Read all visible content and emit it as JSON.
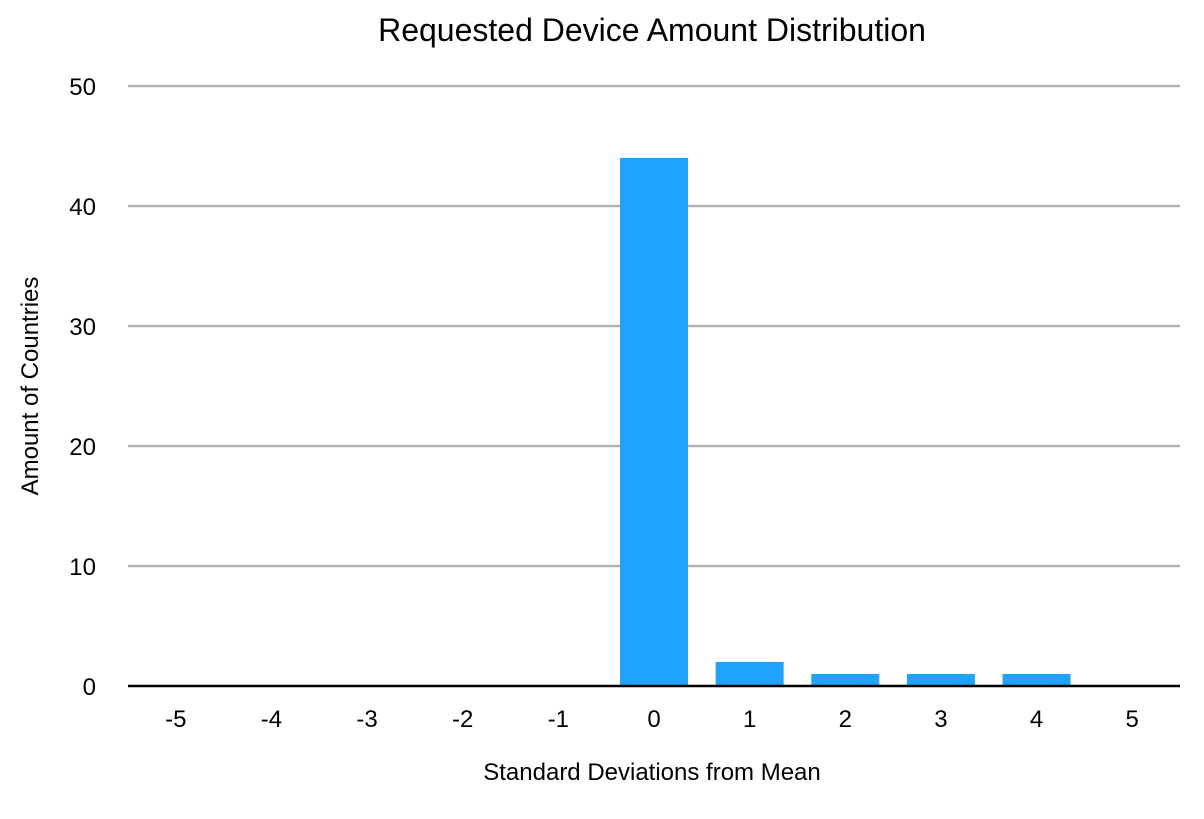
{
  "chart_data": {
    "type": "bar",
    "title": "Requested Device Amount Distribution",
    "xlabel": "Standard Deviations from Mean",
    "ylabel": "Amount of Countries",
    "categories": [
      "-5",
      "-4",
      "-3",
      "-2",
      "-1",
      "0",
      "1",
      "2",
      "3",
      "4",
      "5"
    ],
    "values": [
      0,
      0,
      0,
      0,
      0,
      44,
      2,
      1,
      1,
      1,
      0
    ],
    "ylim": [
      0,
      50
    ],
    "yticks": [
      0,
      10,
      20,
      30,
      40,
      50
    ],
    "grid": true,
    "legend": "none",
    "colors": {
      "bar": "#1fa3ff",
      "grid": "#b3b3b3",
      "axis": "#000000"
    }
  }
}
